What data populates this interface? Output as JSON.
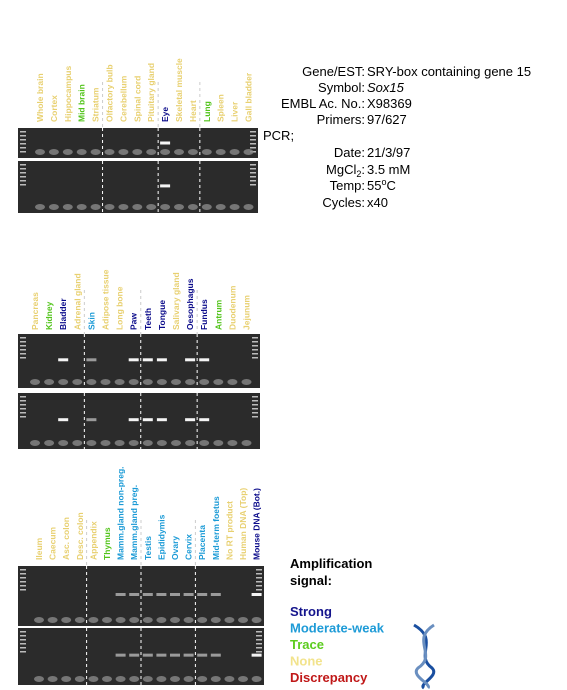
{
  "panels": [
    {
      "lanes": [
        {
          "text": "Whole brain",
          "color": "#e8d070"
        },
        {
          "text": "Cortex",
          "color": "#e8d070"
        },
        {
          "text": "Hippocampus",
          "color": "#e8d070"
        },
        {
          "text": "Mid brain",
          "color": "#52c41a"
        },
        {
          "text": "Striatum",
          "color": "#e8d070"
        },
        {
          "text": "Olfactory bulb",
          "color": "#e8d070"
        },
        {
          "text": "Cerebellum",
          "color": "#e8d070"
        },
        {
          "text": "Spinal cord",
          "color": "#e8d070"
        },
        {
          "text": "Pituitary gland",
          "color": "#e8d070"
        },
        {
          "text": "Eye",
          "color": "#0a0a8a"
        },
        {
          "text": "Skeletal muscle",
          "color": "#e8d070"
        },
        {
          "text": "Heart",
          "color": "#e8d070"
        },
        {
          "text": "Lung",
          "color": "#52c41a"
        },
        {
          "text": "Spleen",
          "color": "#e8d070"
        },
        {
          "text": "Liver",
          "color": "#e8d070"
        },
        {
          "text": "Gall bladder",
          "color": "#e8d070"
        }
      ]
    },
    {
      "lanes": [
        {
          "text": "Pancreas",
          "color": "#e8d070"
        },
        {
          "text": "Kidney",
          "color": "#52c41a"
        },
        {
          "text": "Bladder",
          "color": "#0a0a8a"
        },
        {
          "text": "Adrenal gland",
          "color": "#e8d070"
        },
        {
          "text": "Skin",
          "color": "#1a9ad6"
        },
        {
          "text": "Adipose tissue",
          "color": "#e8d070"
        },
        {
          "text": "Long bone",
          "color": "#e8d070"
        },
        {
          "text": "Paw",
          "color": "#0a0a8a"
        },
        {
          "text": "Teeth",
          "color": "#0a0a8a"
        },
        {
          "text": "Tongue",
          "color": "#0a0a8a"
        },
        {
          "text": "Salivary gland",
          "color": "#e8d070"
        },
        {
          "text": "Oesophagus",
          "color": "#0a0a8a"
        },
        {
          "text": "Fundus",
          "color": "#0a0a8a"
        },
        {
          "text": "Antrum",
          "color": "#52c41a"
        },
        {
          "text": "Duodenum",
          "color": "#e8d070"
        },
        {
          "text": "Jejunum",
          "color": "#e8d070"
        }
      ]
    },
    {
      "lanes": [
        {
          "text": "Ileum",
          "color": "#e8d070"
        },
        {
          "text": "Caecum",
          "color": "#e8d070"
        },
        {
          "text": "Asc. colon",
          "color": "#e8d070"
        },
        {
          "text": "Desc. colon",
          "color": "#e8d070"
        },
        {
          "text": "Appendix",
          "color": "#e8d070"
        },
        {
          "text": "Thymus",
          "color": "#52c41a"
        },
        {
          "text": "Mamm.gland non-preg.",
          "color": "#1a9ad6"
        },
        {
          "text": "Mamm.gland preg.",
          "color": "#1a9ad6"
        },
        {
          "text": "Testis",
          "color": "#1a9ad6"
        },
        {
          "text": "Epididymis",
          "color": "#1a9ad6"
        },
        {
          "text": "Ovary",
          "color": "#1a9ad6"
        },
        {
          "text": "Cervix",
          "color": "#1a9ad6"
        },
        {
          "text": "Placenta",
          "color": "#1a9ad6"
        },
        {
          "text": "Mid-term foetus",
          "color": "#1a9ad6"
        },
        {
          "text": "No RT product",
          "color": "#e8d070"
        },
        {
          "text": "Human DNA (Top)",
          "color": "#e8d070"
        },
        {
          "text": "Mouse DNA (Bot.)",
          "color": "#0a0a8a"
        }
      ]
    }
  ],
  "info": {
    "gene_label": "Gene/EST:",
    "gene": "SRY-box containing gene 15",
    "symbol_label": "Symbol:",
    "symbol": "Sox15",
    "embl_label": "EMBL Ac. No.:",
    "embl": "X98369",
    "primers_label": "Primers:",
    "primers": "97/627",
    "pcr": "PCR;",
    "date_label": "Date:",
    "date": "21/3/97",
    "mgcl_label": "MgCl",
    "mgcl_sub": "2",
    "mgcl_colon": ":",
    "mgcl": "3.5 mM",
    "temp_label": "Temp:",
    "temp": "55",
    "temp_sup": "o",
    "temp_unit": "C",
    "cycles_label": "Cycles:",
    "cycles": "x40"
  },
  "legend": {
    "title_line1": "Amplification",
    "title_line2": "signal:",
    "items": [
      {
        "text": "Strong",
        "color": "#14148c"
      },
      {
        "text": "Moderate-weak",
        "color": "#1e9bd7"
      },
      {
        "text": "Trace",
        "color": "#5ccc1e"
      },
      {
        "text": "None",
        "color": "#f2e38c"
      },
      {
        "text": "Discrepancy",
        "color": "#c01818"
      }
    ]
  }
}
